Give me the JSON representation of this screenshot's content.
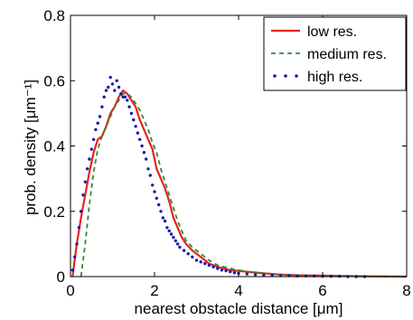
{
  "chart_data": {
    "type": "line",
    "title": "",
    "xlabel": "nearest obstacle distance [μm]",
    "ylabel": "prob. density [μm⁻¹]",
    "xlim": [
      0,
      8
    ],
    "ylim": [
      0,
      0.8
    ],
    "xticks": [
      "0",
      "2",
      "4",
      "6",
      "8"
    ],
    "yticks": [
      "0",
      "0.2",
      "0.4",
      "0.6",
      "0.8"
    ],
    "grid": false,
    "legend_position": "top-right",
    "colors": {
      "low": "#e8231a",
      "medium": "#2e8b3a",
      "high": "#1c1ca8"
    },
    "series": [
      {
        "name": "low res.",
        "style": "solid",
        "points": [
          [
            0.05,
            0.0
          ],
          [
            0.15,
            0.1
          ],
          [
            0.25,
            0.18
          ],
          [
            0.35,
            0.25
          ],
          [
            0.45,
            0.32
          ],
          [
            0.55,
            0.38
          ],
          [
            0.65,
            0.42
          ],
          [
            0.75,
            0.43
          ],
          [
            0.85,
            0.46
          ],
          [
            0.95,
            0.5
          ],
          [
            1.05,
            0.52
          ],
          [
            1.15,
            0.55
          ],
          [
            1.25,
            0.57
          ],
          [
            1.35,
            0.56
          ],
          [
            1.45,
            0.54
          ],
          [
            1.55,
            0.52
          ],
          [
            1.65,
            0.48
          ],
          [
            1.75,
            0.45
          ],
          [
            1.85,
            0.42
          ],
          [
            1.95,
            0.39
          ],
          [
            2.05,
            0.33
          ],
          [
            2.15,
            0.3
          ],
          [
            2.25,
            0.27
          ],
          [
            2.35,
            0.23
          ],
          [
            2.45,
            0.18
          ],
          [
            2.55,
            0.15
          ],
          [
            2.65,
            0.12
          ],
          [
            2.75,
            0.1
          ],
          [
            2.9,
            0.08
          ],
          [
            3.1,
            0.06
          ],
          [
            3.3,
            0.04
          ],
          [
            3.5,
            0.03
          ],
          [
            3.8,
            0.02
          ],
          [
            4.2,
            0.015
          ],
          [
            4.6,
            0.01
          ],
          [
            5.0,
            0.006
          ],
          [
            5.5,
            0.004
          ],
          [
            6.0,
            0.003
          ],
          [
            6.5,
            0.002
          ],
          [
            7.0,
            0.001
          ],
          [
            8.0,
            0.0
          ]
        ]
      },
      {
        "name": "medium res.",
        "style": "dashed",
        "points": [
          [
            0.25,
            0.0
          ],
          [
            0.35,
            0.1
          ],
          [
            0.45,
            0.22
          ],
          [
            0.55,
            0.32
          ],
          [
            0.65,
            0.39
          ],
          [
            0.75,
            0.43
          ],
          [
            0.85,
            0.46
          ],
          [
            0.95,
            0.49
          ],
          [
            1.05,
            0.52
          ],
          [
            1.15,
            0.54
          ],
          [
            1.25,
            0.56
          ],
          [
            1.35,
            0.56
          ],
          [
            1.45,
            0.55
          ],
          [
            1.55,
            0.53
          ],
          [
            1.65,
            0.51
          ],
          [
            1.75,
            0.48
          ],
          [
            1.85,
            0.45
          ],
          [
            1.95,
            0.41
          ],
          [
            2.05,
            0.38
          ],
          [
            2.15,
            0.33
          ],
          [
            2.25,
            0.29
          ],
          [
            2.35,
            0.25
          ],
          [
            2.45,
            0.21
          ],
          [
            2.55,
            0.17
          ],
          [
            2.65,
            0.14
          ],
          [
            2.75,
            0.11
          ],
          [
            2.9,
            0.09
          ],
          [
            3.1,
            0.07
          ],
          [
            3.3,
            0.05
          ],
          [
            3.5,
            0.035
          ],
          [
            3.8,
            0.025
          ],
          [
            4.2,
            0.015
          ],
          [
            4.6,
            0.01
          ],
          [
            5.0,
            0.007
          ],
          [
            5.5,
            0.004
          ],
          [
            6.0,
            0.003
          ],
          [
            6.5,
            0.002
          ],
          [
            7.0,
            0.001
          ],
          [
            8.0,
            0.0
          ]
        ]
      },
      {
        "name": "high res.",
        "style": "dotted",
        "points": [
          [
            0.05,
            0.02
          ],
          [
            0.1,
            0.06
          ],
          [
            0.15,
            0.1
          ],
          [
            0.2,
            0.15
          ],
          [
            0.25,
            0.2
          ],
          [
            0.3,
            0.25
          ],
          [
            0.35,
            0.29
          ],
          [
            0.4,
            0.33
          ],
          [
            0.45,
            0.36
          ],
          [
            0.5,
            0.39
          ],
          [
            0.55,
            0.42
          ],
          [
            0.6,
            0.45
          ],
          [
            0.65,
            0.47
          ],
          [
            0.7,
            0.49
          ],
          [
            0.75,
            0.52
          ],
          [
            0.8,
            0.55
          ],
          [
            0.85,
            0.57
          ],
          [
            0.9,
            0.58
          ],
          [
            0.95,
            0.61
          ],
          [
            1.0,
            0.59
          ],
          [
            1.05,
            0.57
          ],
          [
            1.1,
            0.6
          ],
          [
            1.15,
            0.58
          ],
          [
            1.2,
            0.56
          ],
          [
            1.25,
            0.55
          ],
          [
            1.3,
            0.55
          ],
          [
            1.35,
            0.54
          ],
          [
            1.4,
            0.52
          ],
          [
            1.45,
            0.5
          ],
          [
            1.5,
            0.48
          ],
          [
            1.55,
            0.46
          ],
          [
            1.6,
            0.44
          ],
          [
            1.65,
            0.42
          ],
          [
            1.7,
            0.4
          ],
          [
            1.75,
            0.38
          ],
          [
            1.8,
            0.36
          ],
          [
            1.85,
            0.33
          ],
          [
            1.9,
            0.31
          ],
          [
            1.95,
            0.28
          ],
          [
            2.0,
            0.26
          ],
          [
            2.05,
            0.24
          ],
          [
            2.1,
            0.22
          ],
          [
            2.15,
            0.2
          ],
          [
            2.2,
            0.18
          ],
          [
            2.25,
            0.17
          ],
          [
            2.3,
            0.15
          ],
          [
            2.35,
            0.14
          ],
          [
            2.4,
            0.13
          ],
          [
            2.45,
            0.12
          ],
          [
            2.5,
            0.11
          ],
          [
            2.55,
            0.1
          ],
          [
            2.6,
            0.09
          ],
          [
            2.7,
            0.08
          ],
          [
            2.8,
            0.07
          ],
          [
            2.9,
            0.06
          ],
          [
            3.0,
            0.05
          ],
          [
            3.1,
            0.045
          ],
          [
            3.2,
            0.04
          ],
          [
            3.3,
            0.035
          ],
          [
            3.4,
            0.03
          ],
          [
            3.5,
            0.025
          ],
          [
            3.6,
            0.02
          ],
          [
            3.7,
            0.018
          ],
          [
            3.8,
            0.015
          ],
          [
            3.9,
            0.012
          ],
          [
            4.0,
            0.01
          ],
          [
            4.2,
            0.008
          ],
          [
            4.4,
            0.006
          ],
          [
            4.6,
            0.005
          ],
          [
            4.8,
            0.004
          ],
          [
            5.0,
            0.003
          ],
          [
            5.2,
            0.003
          ],
          [
            5.4,
            0.002
          ],
          [
            5.6,
            0.002
          ],
          [
            5.8,
            0.002
          ],
          [
            6.0,
            0.001
          ],
          [
            6.2,
            0.001
          ],
          [
            6.4,
            0.001
          ],
          [
            6.6,
            0.0
          ],
          [
            6.8,
            0.0
          ],
          [
            7.0,
            0.0
          ]
        ]
      }
    ]
  }
}
